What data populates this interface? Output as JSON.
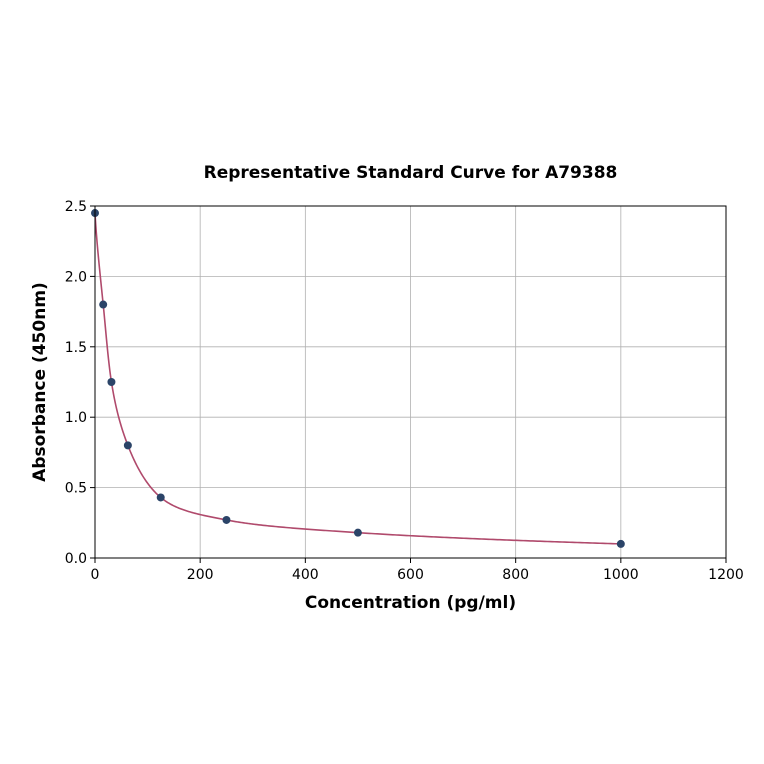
{
  "chart_data": {
    "type": "scatter",
    "title": "Representative Standard Curve for A79388",
    "xlabel": "Concentration (pg/ml)",
    "ylabel": "Absorbance (450nm)",
    "xlim": [
      0,
      1200
    ],
    "ylim": [
      0,
      2.5
    ],
    "x_ticks": [
      "0",
      "200",
      "400",
      "600",
      "800",
      "1000",
      "1200"
    ],
    "y_ticks": [
      "0.0",
      "0.5",
      "1.0",
      "1.5",
      "2.0",
      "2.5"
    ],
    "grid": true,
    "series": [
      {
        "type": "scatter",
        "color": "#2b4468",
        "x": [
          0,
          15.6,
          31.25,
          62.5,
          125,
          250,
          500,
          1000
        ],
        "y": [
          2.45,
          1.8,
          1.25,
          0.8,
          0.43,
          0.27,
          0.18,
          0.1
        ]
      },
      {
        "type": "line",
        "color": "#b04a6c",
        "curve": "fitted"
      }
    ]
  }
}
